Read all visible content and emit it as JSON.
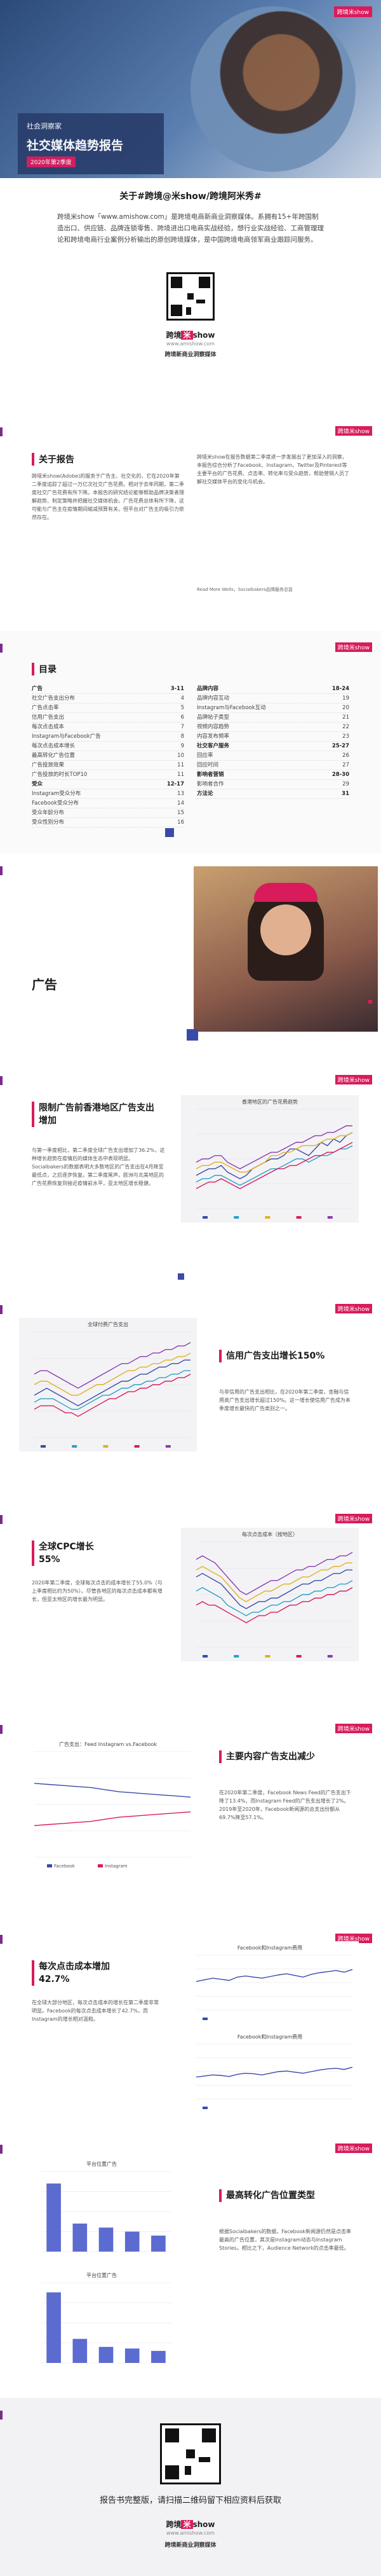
{
  "hero": {
    "brand_tag": "跨境米show",
    "label": "社会洞察家",
    "title": "社交媒体趋势报告",
    "date": "2020年第2季度"
  },
  "intro": {
    "heading": "关于#跨境@米show/跨境阿米秀#",
    "body": "跨境米show「www.amishow.com」是跨境电商新商业洞察媒体。系拥有15+年跨国制造出口、供应链、品牌连锁零售、跨境进出口电商实战经验，想行业实战经验、工商管理理论和跨境电商行业案例分析输出的原创跨境媒体，是中国跨境电商领军商业跟踪问服务。",
    "logo_a": "跨境",
    "logo_b": "米",
    "logo_c": "show",
    "logo_url": "www.amishow.com",
    "tagline": "跨境新商业洞察媒体"
  },
  "about": {
    "heading": "关于报告",
    "left": "跨境米show(Adobe)的服务于广告主、社交化的，它在2020年第二季度追踪了超过一万亿次社交广告花费。相对于去年同期，第二季度社交广告花费有所下降。本报告的研究结论能够帮助品牌决策者理解趋势、制定策略并把握社交媒体机会。广告花费总体有所下降，这可能与广告主在疫情期间缩减预算有关，但平台对广告主的吸引力依然存在。",
    "right": "跨境米show在报告数据第二季度进一步发展出了更加深入的洞察，本报告综合分析了Facebook、Instagram、Twitter及Pinterest等主要平台的广告花费、点击率、转化率与受众趋势，帮助营销人员了解社交媒体平台的变化与机会。",
    "source": "Read More Wells，Socialbakers品牌服务总监"
  },
  "toc": {
    "heading": "目录",
    "left": [
      {
        "t": "广告",
        "p": "3-11",
        "main": true
      },
      {
        "t": "社交广告支出分布",
        "p": "4",
        "main": false
      },
      {
        "t": "广告点击率",
        "p": "5",
        "main": false
      },
      {
        "t": "信用广告支出",
        "p": "6",
        "main": false
      },
      {
        "t": "每次点击成本",
        "p": "7",
        "main": false
      },
      {
        "t": "Instagram与Facebook广告",
        "p": "8",
        "main": false
      },
      {
        "t": "每次点击成本增长",
        "p": "9",
        "main": false
      },
      {
        "t": "最高转化广告位置",
        "p": "10",
        "main": false
      },
      {
        "t": "广告投放效果",
        "p": "11",
        "main": false
      },
      {
        "t": "广告投放的时长TOP10",
        "p": "11",
        "main": false
      },
      {
        "t": "受众",
        "p": "12-17",
        "main": true
      },
      {
        "t": "Instagram受众分布",
        "p": "13",
        "main": false
      },
      {
        "t": "Facebook受众分布",
        "p": "14",
        "main": false
      },
      {
        "t": "受众年龄分布",
        "p": "15",
        "main": false
      },
      {
        "t": "受众性别分布",
        "p": "16",
        "main": false
      }
    ],
    "right": [
      {
        "t": "品牌内容",
        "p": "18-24",
        "main": true
      },
      {
        "t": "品牌内容互动",
        "p": "19",
        "main": false
      },
      {
        "t": "Instagram与Facebook互动",
        "p": "20",
        "main": false
      },
      {
        "t": "品牌帖子类型",
        "p": "21",
        "main": false
      },
      {
        "t": "视频内容趋势",
        "p": "22",
        "main": false
      },
      {
        "t": "内容发布频率",
        "p": "23",
        "main": false
      },
      {
        "t": "社交客户服务",
        "p": "25-27",
        "main": true
      },
      {
        "t": "回应率",
        "p": "26",
        "main": false
      },
      {
        "t": "回应时间",
        "p": "27",
        "main": false
      },
      {
        "t": "影响者营销",
        "p": "28-30",
        "main": true
      },
      {
        "t": "影响者合作",
        "p": "29",
        "main": false
      },
      {
        "t": "方法论",
        "p": "31",
        "main": true
      }
    ]
  },
  "ads_cover": {
    "title": "广告"
  },
  "sec1": {
    "heading": "限制广告前香港地区广告支出增加",
    "body": "与第一季度相比，第二季度全球广告支出增加了36.2%，这种增长趋势在疫情后的媒体生态中表现明显。Socialbakers的数据表明大多数地区的广告支出在4月降至最低点，之后逐步恢复。第二季度尾声，欧洲与北美地区的广告花费恢复到接近疫情前水平，亚太地区增长稳健。"
  },
  "sec2": {
    "heading": "信用广告支出增长150%",
    "body": "与非信用的广告支出相比，在2020年第二季度，金融与信用类广告支出增长超过150%。这一增长使信用广告成为本季度增长最快的广告类别之一。"
  },
  "sec3": {
    "heading": "全球CPC增长55%",
    "body": "2020年第二季度，全球每次点击的成本增长了55.0%（与上季度相比约为50%）。尽管各地区的每次点击成本都有增长，但亚太地区的增长最为明显。"
  },
  "sec4": {
    "heading": "主要内容广告支出减少",
    "body": "在2020年第二季度，Facebook News Feed的广告支出下降了13.4%，而Instagram Feed的广告支出增长了2%。2019年至2020年，Facebook新闻源的总支出份额从69.7%降至57.1%。"
  },
  "sec5": {
    "heading": "每次点击成本增加42.7%",
    "body": "在全球大部分地区，每次点击成本的增长在第二季度非常明显。Facebook的每次点击成本增长了42.7%，而Instagram的增长相对温和。"
  },
  "sec6": {
    "heading": "最高转化广告位置类型",
    "body": "根据Socialbakers的数据，Facebook新闻源仍然是点击率最高的广告位置，其次是Instagram动态与Instagram Stories。相比之下，Audience Network的点击率最低。"
  },
  "footer": {
    "cta": "报告书完整版，请扫描二维码留下相应资料后获取"
  },
  "chart_data": [
    {
      "type": "line",
      "title": "香港地区的广告花费趋势",
      "categories": [
        "1",
        "2",
        "3",
        "4",
        "5",
        "6",
        "7",
        "8",
        "9",
        "10",
        "11",
        "12",
        "13",
        "14",
        "15",
        "16",
        "17",
        "18",
        "19",
        "20",
        "21",
        "22",
        "23",
        "24",
        "25",
        "26"
      ],
      "ylim": [
        0,
        30
      ],
      "series": [
        {
          "name": "",
          "color": "#3a4aa8",
          "values": [
            10,
            11,
            12,
            12,
            13,
            11,
            10,
            9,
            10,
            12,
            13,
            14,
            15,
            15,
            16,
            18,
            18,
            17,
            16,
            18,
            20,
            19,
            21,
            20,
            22,
            23
          ]
        },
        {
          "name": "",
          "color": "#2aa0c8",
          "values": [
            8,
            9,
            9,
            10,
            10,
            9,
            8,
            7,
            8,
            9,
            10,
            11,
            12,
            12,
            13,
            14,
            15,
            15,
            14,
            15,
            16,
            16,
            17,
            18,
            18,
            19
          ]
        },
        {
          "name": "",
          "color": "#e0b020",
          "values": [
            12,
            13,
            13,
            14,
            14,
            13,
            12,
            11,
            11,
            12,
            13,
            14,
            16,
            16,
            17,
            17,
            18,
            19,
            19,
            19,
            20,
            21,
            21,
            22,
            22,
            23
          ]
        },
        {
          "name": "",
          "color": "#d91b5c",
          "values": [
            6,
            7,
            8,
            8,
            9,
            8,
            7,
            6,
            7,
            8,
            9,
            10,
            11,
            12,
            12,
            13,
            13,
            14,
            15,
            16,
            16,
            17,
            17,
            18,
            19,
            20
          ]
        },
        {
          "name": "",
          "color": "#8a3ab0",
          "values": [
            14,
            15,
            15,
            16,
            16,
            14,
            13,
            12,
            13,
            14,
            15,
            16,
            17,
            17,
            18,
            19,
            20,
            20,
            21,
            22,
            22,
            23,
            23,
            24,
            25,
            25
          ]
        }
      ]
    },
    {
      "type": "line",
      "title": "全球付费广告支出",
      "categories": [
        "1",
        "2",
        "3",
        "4",
        "5",
        "6",
        "7",
        "8",
        "9",
        "10",
        "11",
        "12",
        "13",
        "14",
        "15",
        "16",
        "17",
        "18",
        "19",
        "20",
        "21",
        "22",
        "23",
        "24",
        "25",
        "26"
      ],
      "ylim": [
        0,
        30
      ],
      "series": [
        {
          "name": "",
          "color": "#3a4aa8",
          "values": [
            12,
            13,
            14,
            13,
            12,
            11,
            10,
            9,
            10,
            11,
            12,
            13,
            14,
            15,
            16,
            16,
            17,
            18,
            18,
            19,
            20,
            20,
            21,
            21,
            22,
            22
          ]
        },
        {
          "name": "",
          "color": "#2aa0c8",
          "values": [
            10,
            11,
            11,
            11,
            10,
            9,
            8,
            8,
            9,
            10,
            11,
            12,
            12,
            13,
            14,
            14,
            15,
            15,
            16,
            16,
            17,
            17,
            18,
            18,
            19,
            19
          ]
        },
        {
          "name": "",
          "color": "#e0b020",
          "values": [
            15,
            16,
            16,
            15,
            14,
            13,
            12,
            12,
            13,
            14,
            15,
            15,
            16,
            17,
            18,
            19,
            19,
            20,
            20,
            21,
            21,
            22,
            22,
            23,
            23,
            24
          ]
        },
        {
          "name": "",
          "color": "#d91b5c",
          "values": [
            8,
            9,
            9,
            9,
            8,
            7,
            7,
            6,
            7,
            8,
            9,
            10,
            11,
            11,
            12,
            13,
            13,
            14,
            14,
            15,
            15,
            16,
            16,
            17,
            17,
            18
          ]
        },
        {
          "name": "",
          "color": "#8a3ab0",
          "values": [
            18,
            19,
            19,
            18,
            17,
            16,
            15,
            14,
            15,
            16,
            17,
            18,
            19,
            20,
            21,
            21,
            22,
            23,
            23,
            24,
            24,
            25,
            25,
            26,
            26,
            27
          ]
        }
      ]
    },
    {
      "type": "line",
      "title": "每次点击成本（按地区）",
      "categories": [
        "1",
        "2",
        "3",
        "4",
        "5",
        "6",
        "7",
        "8",
        "9",
        "10",
        "11",
        "12",
        "13",
        "14",
        "15",
        "16",
        "17",
        "18",
        "19",
        "20",
        "21",
        "22",
        "23",
        "24",
        "25",
        "26"
      ],
      "ylim": [
        0,
        30
      ],
      "series": [
        {
          "name": "",
          "color": "#3a4aa8",
          "values": [
            20,
            21,
            20,
            19,
            18,
            16,
            14,
            12,
            11,
            12,
            13,
            13,
            14,
            14,
            15,
            16,
            17,
            18,
            18,
            19,
            19,
            20,
            21,
            21,
            22,
            22
          ]
        },
        {
          "name": "",
          "color": "#2aa0c8",
          "values": [
            16,
            17,
            16,
            15,
            14,
            12,
            11,
            10,
            9,
            10,
            10,
            11,
            12,
            12,
            13,
            13,
            14,
            15,
            15,
            16,
            16,
            17,
            17,
            18,
            18,
            19
          ]
        },
        {
          "name": "",
          "color": "#e0b020",
          "values": [
            22,
            23,
            22,
            21,
            20,
            18,
            16,
            14,
            13,
            14,
            15,
            16,
            16,
            17,
            18,
            18,
            19,
            20,
            20,
            21,
            22,
            22,
            23,
            23,
            24,
            24
          ]
        },
        {
          "name": "",
          "color": "#d91b5c",
          "values": [
            12,
            13,
            12,
            12,
            11,
            10,
            9,
            8,
            7,
            8,
            9,
            9,
            10,
            10,
            11,
            12,
            12,
            13,
            13,
            14,
            14,
            15,
            15,
            16,
            16,
            17
          ]
        },
        {
          "name": "",
          "color": "#8a3ab0",
          "values": [
            25,
            26,
            25,
            24,
            22,
            20,
            18,
            16,
            15,
            16,
            17,
            18,
            19,
            19,
            20,
            21,
            22,
            22,
            23,
            23,
            24,
            25,
            25,
            26,
            26,
            27
          ]
        }
      ]
    },
    {
      "type": "line",
      "title": "广告支出：Feed Instagram vs.Facebook",
      "categories": [
        "1",
        "2",
        "3",
        "4",
        "5",
        "6",
        "7",
        "8",
        "9",
        "10",
        "11",
        "12"
      ],
      "ylim": [
        0,
        100
      ],
      "series": [
        {
          "name": "Facebook",
          "color": "#3a4aa8",
          "values": [
            70,
            69,
            68,
            67,
            66,
            64,
            62,
            61,
            60,
            59,
            58,
            57
          ]
        },
        {
          "name": "Instagram",
          "color": "#d91b5c",
          "values": [
            30,
            31,
            32,
            33,
            34,
            36,
            38,
            39,
            40,
            41,
            42,
            43
          ]
        }
      ]
    },
    {
      "type": "line",
      "title": "Facebook和Instagram费用",
      "categories": [
        "1",
        "2",
        "3",
        "4",
        "5",
        "6",
        "7",
        "8",
        "9",
        "10",
        "11",
        "12",
        "13",
        "14",
        "15",
        "16",
        "17",
        "18",
        "19",
        "20"
      ],
      "ylim": [
        0,
        1
      ],
      "series": [
        {
          "name": "",
          "color": "#3a4aa8",
          "values": [
            0.52,
            0.55,
            0.58,
            0.56,
            0.54,
            0.6,
            0.62,
            0.6,
            0.58,
            0.61,
            0.64,
            0.66,
            0.63,
            0.6,
            0.65,
            0.68,
            0.7,
            0.72,
            0.69,
            0.74
          ]
        }
      ]
    },
    {
      "type": "line",
      "title": "Facebook和Instagram费用",
      "categories": [
        "1",
        "2",
        "3",
        "4",
        "5",
        "6",
        "7",
        "8",
        "9",
        "10",
        "11",
        "12",
        "13",
        "14",
        "15",
        "16",
        "17",
        "18",
        "19",
        "20"
      ],
      "ylim": [
        0,
        1
      ],
      "series": [
        {
          "name": "",
          "color": "#3a4aa8",
          "values": [
            0.4,
            0.42,
            0.44,
            0.43,
            0.41,
            0.45,
            0.47,
            0.46,
            0.44,
            0.47,
            0.5,
            0.51,
            0.49,
            0.47,
            0.5,
            0.53,
            0.55,
            0.56,
            0.54,
            0.58
          ]
        }
      ]
    },
    {
      "type": "bar",
      "title": "平台位置广告",
      "categories": [
        "A",
        "B",
        "C",
        "D",
        "E"
      ],
      "values": [
        85,
        35,
        30,
        25,
        20
      ],
      "ylim": [
        0,
        100
      ]
    },
    {
      "type": "bar",
      "title": "平台位置广告",
      "categories": [
        "A",
        "B",
        "C",
        "D",
        "E"
      ],
      "values": [
        88,
        30,
        20,
        18,
        15
      ],
      "ylim": [
        0,
        100
      ]
    }
  ]
}
